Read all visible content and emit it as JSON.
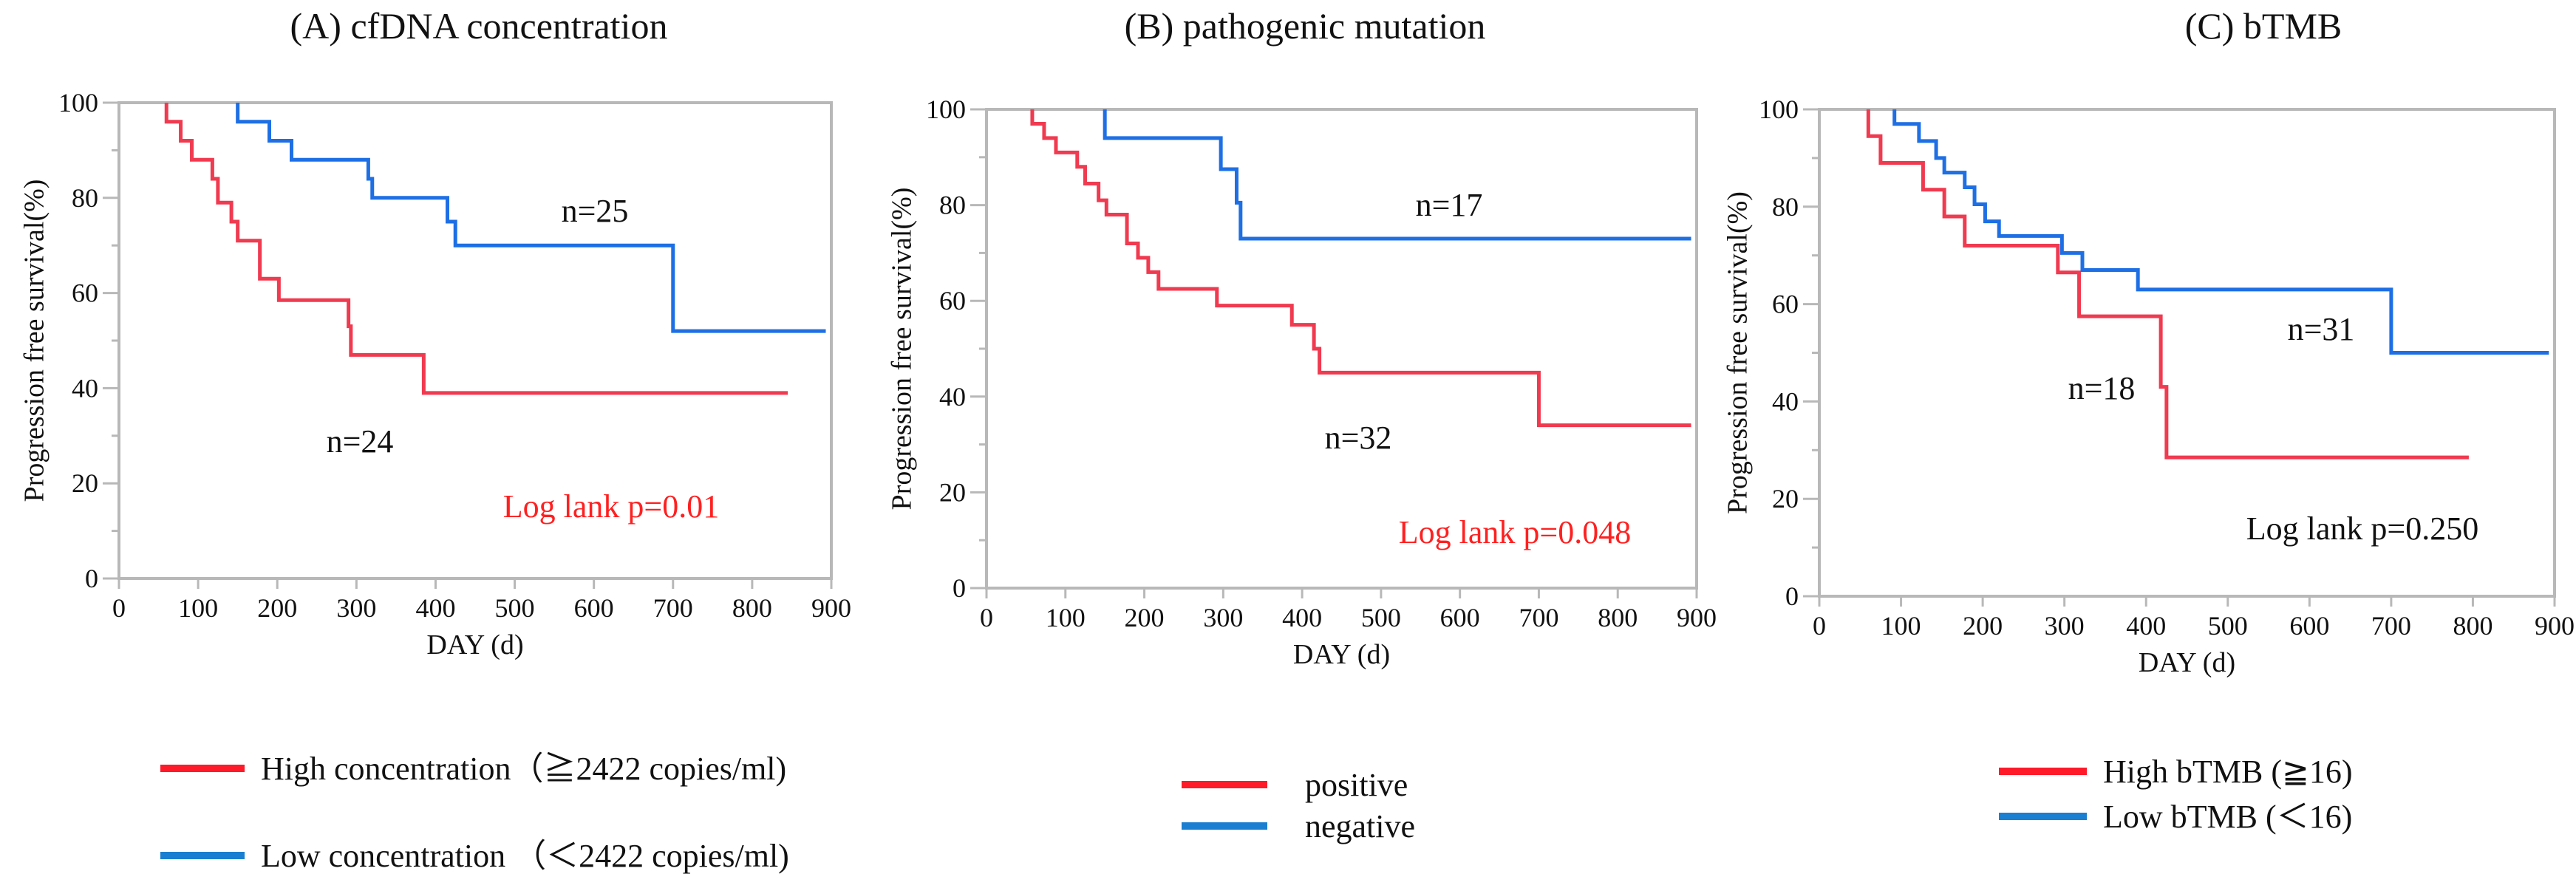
{
  "colors": {
    "high": "#f03a50",
    "low": "#1e6fe4",
    "legend_high": "#ff1a2a",
    "legend_low": "#1a7fd0",
    "axis": "#b8b8b8",
    "pvalue_red": "#ff2020",
    "pvalue_black": "#111111"
  },
  "chart_data": [
    {
      "type": "line",
      "subtype": "kaplan-meier step",
      "title": "(A) cfDNA concentration",
      "xlabel": "DAY (d)",
      "ylabel": "Progression free survival(%)",
      "xlim": [
        0,
        900
      ],
      "ylim": [
        0,
        100
      ],
      "xticks": [
        "0",
        "100",
        "200",
        "300",
        "400",
        "500",
        "600",
        "700",
        "800",
        "900"
      ],
      "yticks": [
        "0",
        "20",
        "40",
        "60",
        "80",
        "100"
      ],
      "grid": false,
      "annotations": [
        {
          "text": "n=25",
          "series": "low"
        },
        {
          "text": "n=24",
          "series": "high"
        },
        {
          "text": "Log lank p=0.01",
          "color": "red"
        }
      ],
      "legend": [
        {
          "label": "High concentration（≧2422 copies/ml)",
          "series": "high"
        },
        {
          "label": "Low concentration （＜2422 copies/ml)",
          "series": "low"
        }
      ],
      "series": [
        {
          "name": "high",
          "start": 60,
          "end": 845,
          "steps": [
            [
              60,
              96
            ],
            [
              78,
              92
            ],
            [
              92,
              88
            ],
            [
              118,
              84
            ],
            [
              125,
              79
            ],
            [
              142,
              75
            ],
            [
              150,
              71
            ],
            [
              178,
              63
            ],
            [
              202,
              58.5
            ],
            [
              290,
              53
            ],
            [
              293,
              47
            ],
            [
              385,
              39
            ]
          ]
        },
        {
          "name": "low",
          "start": 150,
          "end": 893,
          "steps": [
            [
              150,
              96
            ],
            [
              190,
              92
            ],
            [
              218,
              88
            ],
            [
              315,
              84
            ],
            [
              320,
              80
            ],
            [
              415,
              75
            ],
            [
              425,
              70
            ],
            [
              700,
              52
            ]
          ]
        }
      ]
    },
    {
      "type": "line",
      "subtype": "kaplan-meier step",
      "title": "(B) pathogenic  mutation",
      "xlabel": "DAY (d)",
      "ylabel": "Progression free survival(%)",
      "xlim": [
        0,
        900
      ],
      "ylim": [
        0,
        100
      ],
      "xticks": [
        "0",
        "100",
        "200",
        "300",
        "400",
        "500",
        "600",
        "700",
        "800",
        "900"
      ],
      "yticks": [
        "0",
        "20",
        "40",
        "60",
        "80",
        "100"
      ],
      "grid": false,
      "annotations": [
        {
          "text": "n=17",
          "series": "low"
        },
        {
          "text": "n=32",
          "series": "high"
        },
        {
          "text": "Log lank p=0.048",
          "color": "red"
        }
      ],
      "legend": [
        {
          "label": "positive",
          "series": "high"
        },
        {
          "label": "negative",
          "series": "low"
        }
      ],
      "series": [
        {
          "name": "high",
          "start": 58,
          "end": 893,
          "steps": [
            [
              58,
              97
            ],
            [
              73,
              94
            ],
            [
              88,
              91
            ],
            [
              115,
              88
            ],
            [
              125,
              84.5
            ],
            [
              142,
              81
            ],
            [
              152,
              78
            ],
            [
              178,
              72
            ],
            [
              192,
              69
            ],
            [
              205,
              66
            ],
            [
              218,
              62.5
            ],
            [
              292,
              59
            ],
            [
              387,
              55
            ],
            [
              415,
              50
            ],
            [
              422,
              45
            ],
            [
              700,
              34
            ]
          ]
        },
        {
          "name": "low",
          "start": 150,
          "end": 893,
          "steps": [
            [
              150,
              94
            ],
            [
              297,
              87.5
            ],
            [
              317,
              80.5
            ],
            [
              322,
              73
            ]
          ]
        }
      ]
    },
    {
      "type": "line",
      "subtype": "kaplan-meier step",
      "title": "(C) bTMB",
      "xlabel": "DAY (d)",
      "ylabel": "Progression free survival(%)",
      "xlim": [
        0,
        900
      ],
      "ylim": [
        0,
        100
      ],
      "xticks": [
        "0",
        "100",
        "200",
        "300",
        "400",
        "500",
        "600",
        "700",
        "800",
        "900"
      ],
      "yticks": [
        "0",
        "20",
        "40",
        "60",
        "80",
        "100"
      ],
      "grid": false,
      "annotations": [
        {
          "text": "n=31",
          "series": "low"
        },
        {
          "text": "n=18",
          "series": "high"
        },
        {
          "text": "Log lank p=0.250",
          "color": "black"
        }
      ],
      "legend": [
        {
          "label": "High bTMB (≧16)",
          "series": "high"
        },
        {
          "label": "Low  bTMB (＜16)",
          "series": "low"
        }
      ],
      "series": [
        {
          "name": "high",
          "start": 60,
          "end": 795,
          "steps": [
            [
              60,
              94.5
            ],
            [
              75,
              89
            ],
            [
              127,
              83.5
            ],
            [
              153,
              78
            ],
            [
              178,
              72
            ],
            [
              292,
              66.5
            ],
            [
              318,
              57.5
            ],
            [
              418,
              43
            ],
            [
              425,
              28.5
            ]
          ]
        },
        {
          "name": "low",
          "start": 92,
          "end": 893,
          "steps": [
            [
              92,
              97
            ],
            [
              122,
              93.5
            ],
            [
              143,
              90
            ],
            [
              153,
              87
            ],
            [
              178,
              84
            ],
            [
              190,
              80.5
            ],
            [
              203,
              77
            ],
            [
              220,
              74
            ],
            [
              297,
              70.5
            ],
            [
              322,
              67
            ],
            [
              390,
              63
            ],
            [
              700,
              50
            ]
          ]
        }
      ]
    }
  ]
}
